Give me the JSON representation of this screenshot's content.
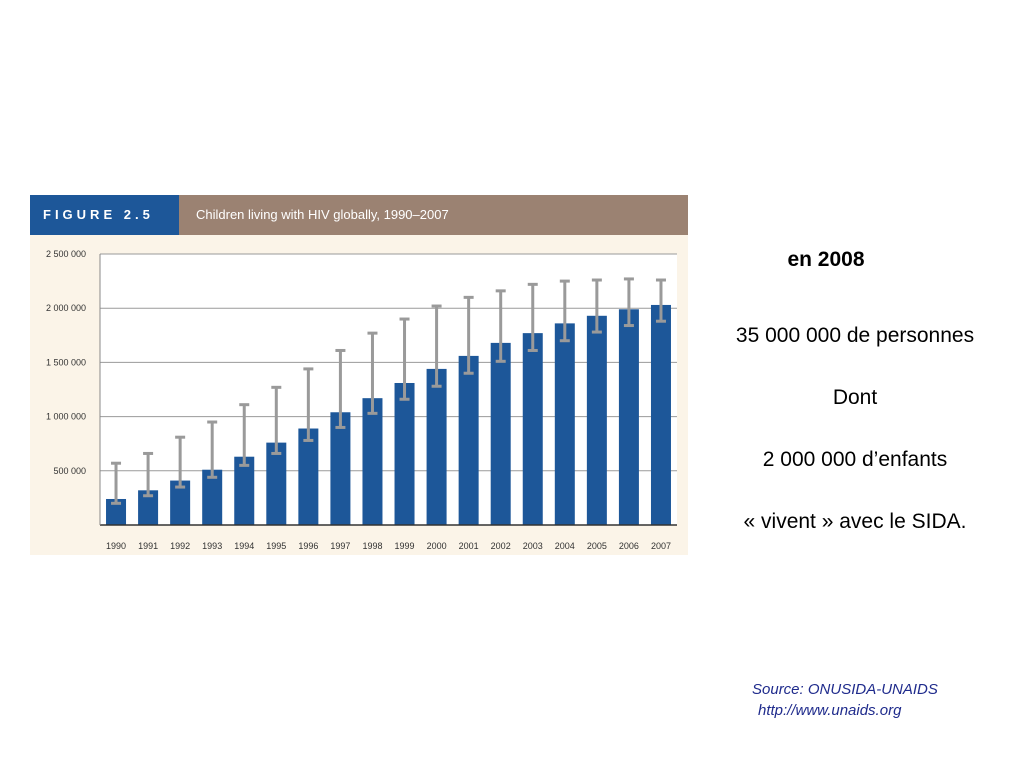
{
  "figure": {
    "label": "FIGURE 2.5",
    "title": "Children living with HIV globally, 1990–2007",
    "colors": {
      "label_bg": "#1d5799",
      "title_bg": "#9b8272",
      "plot_bg": "#fbf4e8",
      "bar": "#1d5799",
      "error_bar": "#9a9a9a"
    }
  },
  "chart_data": {
    "type": "bar",
    "title": "Children living with HIV globally, 1990–2007",
    "xlabel": "",
    "ylabel": "",
    "ylim": [
      0,
      2500000
    ],
    "yticks": [
      500000,
      1000000,
      1500000,
      2000000,
      2500000
    ],
    "ytick_labels": [
      "500 000",
      "1 000 000",
      "1 500 000",
      "2 000 000",
      "2 500 000"
    ],
    "grid": true,
    "categories": [
      "1990",
      "1991",
      "1992",
      "1993",
      "1994",
      "1995",
      "1996",
      "1997",
      "1998",
      "1999",
      "2000",
      "2001",
      "2002",
      "2003",
      "2004",
      "2005",
      "2006",
      "2007"
    ],
    "values": [
      240000,
      320000,
      410000,
      510000,
      630000,
      760000,
      890000,
      1040000,
      1170000,
      1310000,
      1440000,
      1560000,
      1680000,
      1770000,
      1860000,
      1930000,
      1990000,
      2030000
    ],
    "error_low": [
      200000,
      270000,
      350000,
      440000,
      550000,
      660000,
      780000,
      900000,
      1030000,
      1160000,
      1280000,
      1400000,
      1510000,
      1610000,
      1700000,
      1780000,
      1840000,
      1880000
    ],
    "error_high": [
      570000,
      660000,
      810000,
      950000,
      1110000,
      1270000,
      1440000,
      1610000,
      1770000,
      1900000,
      2020000,
      2100000,
      2160000,
      2220000,
      2250000,
      2260000,
      2270000,
      2260000
    ]
  },
  "side_text": {
    "title": "en 2008",
    "lines": [
      "35 000 000 de personnes",
      "Dont",
      "2 000 000 d’enfants",
      "« vivent » avec le SIDA."
    ]
  },
  "source": {
    "line1": "Source: ONUSIDA-UNAIDS",
    "line2": "http://www.unaids.org"
  }
}
